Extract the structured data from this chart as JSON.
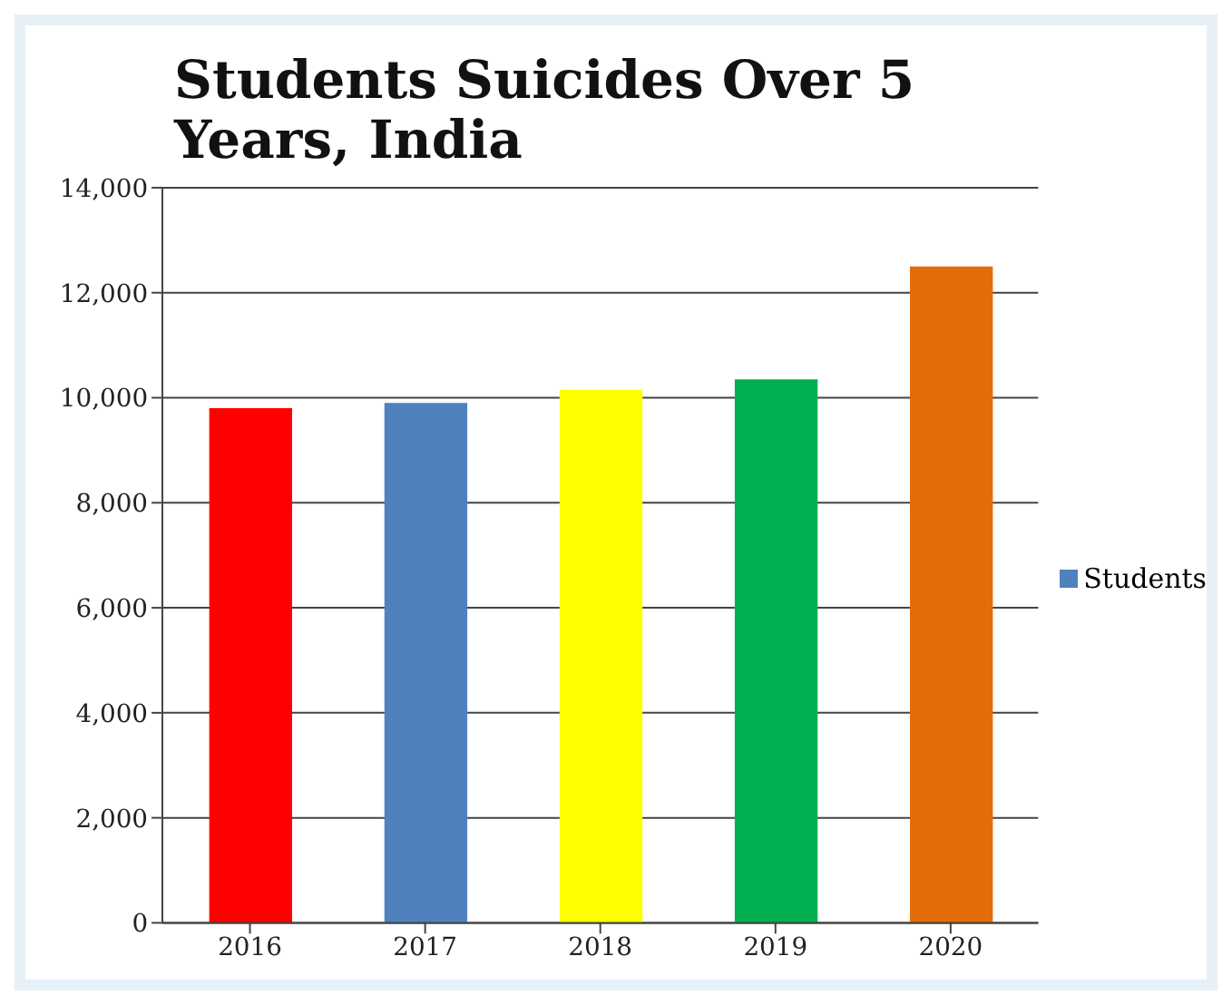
{
  "chart_data": {
    "type": "bar",
    "title": "Students Suicides Over 5 Years, India",
    "categories": [
      "2016",
      "2017",
      "2018",
      "2019",
      "2020"
    ],
    "series": [
      {
        "name": "Students",
        "color": "#4f81bd",
        "colors": [
          "#ff0000",
          "#4f81bd",
          "#ffff00",
          "#00b050",
          "#e36c09"
        ],
        "values": [
          9800,
          9900,
          10150,
          10350,
          12500
        ]
      }
    ],
    "ylim": [
      0,
      14000
    ],
    "yticks": [
      0,
      {
        "value": 2000,
        "label": "2,000"
      },
      {
        "value": 4000,
        "label": "4,000"
      },
      {
        "value": 6000,
        "label": "6,000"
      },
      {
        "value": 8000,
        "label": "8,000"
      },
      {
        "value": 10000,
        "label": "10,000"
      },
      {
        "value": 12000,
        "label": "12,000"
      },
      {
        "value": 14000,
        "label": "14,000"
      }
    ],
    "grid": "y",
    "legend": "right"
  }
}
